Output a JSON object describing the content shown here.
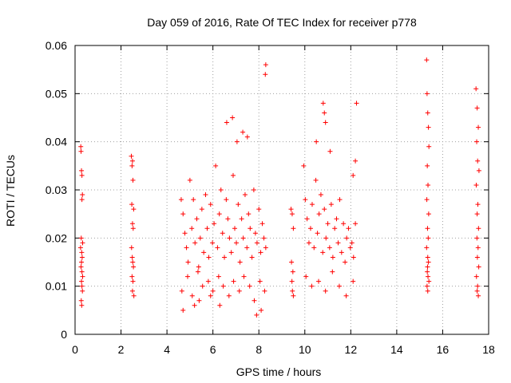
{
  "chart_data": {
    "type": "scatter",
    "title": "Day 059 of 2016, Rate Of TEC Index for receiver p778",
    "xlabel": "GPS time / hours",
    "ylabel": "ROTI / TECUs",
    "xlim": [
      0,
      18
    ],
    "ylim": [
      0,
      0.06
    ],
    "xticks": [
      0,
      2,
      4,
      6,
      8,
      10,
      12,
      14,
      16,
      18
    ],
    "xtick_labels": [
      "0",
      "2",
      "4",
      "6",
      "8",
      "10",
      "12",
      "14",
      "16",
      "18"
    ],
    "yticks": [
      0,
      0.01,
      0.02,
      0.03,
      0.04,
      0.05,
      0.06
    ],
    "ytick_labels": [
      "0",
      "0.01",
      "0.02",
      "0.03",
      "0.04",
      "0.05",
      "0.06"
    ],
    "grid": true,
    "marker": "+",
    "color": "#ff0000",
    "series": [
      {
        "name": "ROTI",
        "x": [
          0.25,
          0.26,
          0.28,
          0.3,
          0.32,
          0.3,
          0.27,
          0.33,
          0.24,
          0.29,
          0.31,
          0.28,
          0.26,
          0.3,
          0.33,
          0.28,
          0.3,
          0.32,
          0.27,
          0.29,
          2.45,
          2.5,
          2.48,
          2.52,
          2.47,
          2.55,
          2.5,
          2.53,
          2.46,
          2.49,
          2.51,
          2.54,
          2.48,
          2.52,
          2.5,
          2.56,
          4.62,
          4.7,
          4.78,
          4.85,
          4.92,
          5.0,
          5.08,
          5.15,
          5.22,
          5.3,
          5.38,
          5.45,
          5.52,
          5.6,
          5.68,
          5.75,
          5.82,
          5.9,
          5.98,
          6.05,
          6.12,
          6.2,
          6.28,
          6.35,
          6.42,
          6.5,
          6.58,
          6.65,
          6.72,
          6.8,
          6.88,
          6.95,
          7.02,
          7.1,
          7.18,
          7.25,
          7.32,
          7.4,
          7.48,
          7.55,
          7.62,
          7.7,
          7.78,
          7.85,
          7.92,
          8.0,
          8.08,
          8.15,
          8.22,
          8.3,
          4.65,
          4.9,
          5.1,
          5.35,
          5.55,
          5.8,
          6.0,
          6.25,
          6.45,
          6.7,
          6.9,
          7.15,
          7.35,
          7.6,
          7.8,
          8.05,
          8.25,
          4.7,
          5.2,
          5.4,
          5.9,
          6.3,
          6.6,
          6.85,
          7.05,
          7.3,
          7.5,
          7.9,
          8.1,
          8.28,
          8.3,
          9.4,
          9.45,
          9.5,
          9.42,
          9.48,
          9.44,
          9.46,
          9.5,
          9.95,
          10.02,
          10.1,
          10.18,
          10.25,
          10.32,
          10.4,
          10.48,
          10.55,
          10.62,
          10.7,
          10.78,
          10.85,
          10.92,
          11.0,
          11.08,
          11.15,
          11.22,
          11.3,
          11.38,
          11.45,
          11.52,
          11.6,
          11.68,
          11.75,
          11.82,
          11.9,
          11.98,
          12.05,
          12.12,
          12.2,
          10.05,
          10.3,
          10.6,
          10.9,
          11.2,
          11.5,
          11.8,
          12.1,
          10.5,
          10.8,
          10.85,
          10.9,
          11.1,
          12.2,
          12.25,
          12.1,
          15.3,
          15.32,
          15.35,
          15.38,
          15.4,
          15.33,
          15.36,
          15.31,
          15.39,
          15.34,
          15.37,
          15.3,
          15.35,
          15.38,
          15.33,
          15.36,
          15.4,
          15.32,
          15.35,
          15.34,
          17.45,
          17.5,
          17.55,
          17.48,
          17.52,
          17.58,
          17.46,
          17.53,
          17.5,
          17.56,
          17.49,
          17.54,
          17.51,
          17.57,
          17.47,
          17.52,
          17.5,
          17.55
        ],
        "y": [
          0.039,
          0.038,
          0.034,
          0.033,
          0.029,
          0.028,
          0.02,
          0.019,
          0.018,
          0.017,
          0.016,
          0.015,
          0.014,
          0.013,
          0.012,
          0.011,
          0.01,
          0.009,
          0.007,
          0.006,
          0.037,
          0.036,
          0.035,
          0.032,
          0.027,
          0.026,
          0.023,
          0.022,
          0.018,
          0.016,
          0.015,
          0.014,
          0.012,
          0.011,
          0.009,
          0.008,
          0.028,
          0.025,
          0.021,
          0.018,
          0.015,
          0.032,
          0.022,
          0.028,
          0.019,
          0.024,
          0.014,
          0.02,
          0.026,
          0.017,
          0.029,
          0.022,
          0.016,
          0.027,
          0.019,
          0.023,
          0.035,
          0.018,
          0.025,
          0.03,
          0.021,
          0.016,
          0.028,
          0.024,
          0.02,
          0.017,
          0.033,
          0.022,
          0.019,
          0.027,
          0.015,
          0.024,
          0.02,
          0.029,
          0.018,
          0.025,
          0.022,
          0.016,
          0.03,
          0.021,
          0.019,
          0.026,
          0.017,
          0.023,
          0.02,
          0.018,
          0.009,
          0.012,
          0.008,
          0.013,
          0.01,
          0.011,
          0.009,
          0.012,
          0.01,
          0.008,
          0.011,
          0.009,
          0.012,
          0.01,
          0.007,
          0.011,
          0.009,
          0.005,
          0.006,
          0.007,
          0.008,
          0.006,
          0.044,
          0.045,
          0.04,
          0.042,
          0.041,
          0.004,
          0.005,
          0.054,
          0.056,
          0.026,
          0.025,
          0.022,
          0.015,
          0.013,
          0.011,
          0.009,
          0.008,
          0.035,
          0.028,
          0.024,
          0.019,
          0.022,
          0.027,
          0.018,
          0.032,
          0.021,
          0.025,
          0.029,
          0.017,
          0.026,
          0.02,
          0.023,
          0.018,
          0.027,
          0.016,
          0.022,
          0.024,
          0.019,
          0.028,
          0.017,
          0.023,
          0.015,
          0.02,
          0.022,
          0.018,
          0.019,
          0.016,
          0.023,
          0.012,
          0.01,
          0.011,
          0.009,
          0.013,
          0.01,
          0.008,
          0.011,
          0.04,
          0.048,
          0.046,
          0.044,
          0.038,
          0.036,
          0.048,
          0.033,
          0.057,
          0.05,
          0.046,
          0.043,
          0.039,
          0.035,
          0.031,
          0.028,
          0.025,
          0.022,
          0.02,
          0.018,
          0.016,
          0.015,
          0.013,
          0.012,
          0.011,
          0.01,
          0.009,
          0.014,
          0.051,
          0.047,
          0.043,
          0.04,
          0.036,
          0.034,
          0.031,
          0.027,
          0.025,
          0.022,
          0.02,
          0.018,
          0.016,
          0.014,
          0.012,
          0.01,
          0.009,
          0.008
        ]
      }
    ]
  }
}
